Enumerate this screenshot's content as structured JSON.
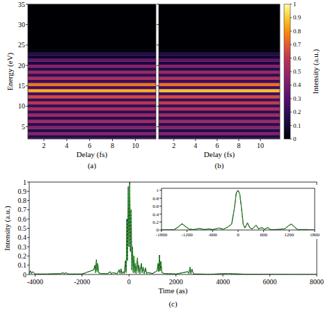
{
  "chart_data": [
    {
      "type": "heatmap",
      "panel": "(a)",
      "xlabel": "Delay (fs)",
      "ylabel": "Energy (eV)",
      "xlim": [
        0.6,
        11.8
      ],
      "ylim": [
        2,
        35
      ],
      "xticks": [
        2,
        4,
        6,
        8,
        10
      ],
      "yticks": [
        5,
        10,
        15,
        20,
        25,
        30,
        35
      ],
      "x_edges": [
        0.6,
        11.8
      ],
      "y_edges": [
        1.5,
        2.25,
        3,
        3.75,
        4.5,
        5.25,
        6,
        6.75,
        7.5,
        8.25,
        9,
        9.75,
        10.5,
        11.25,
        12,
        12.75,
        13.5,
        14.25,
        15,
        15.75,
        16.5,
        17.25,
        18,
        18.75,
        19.5,
        20.25,
        21,
        21.75,
        22.5,
        23.25,
        24,
        35
      ],
      "cells": [
        [
          0.35
        ],
        [
          0.15
        ],
        [
          0.45
        ],
        [
          0.15
        ],
        [
          0.45
        ],
        [
          0.18
        ],
        [
          0.5
        ],
        [
          0.18
        ],
        [
          0.5
        ],
        [
          0.2
        ],
        [
          0.55
        ],
        [
          0.2
        ],
        [
          0.6
        ],
        [
          0.22
        ],
        [
          0.65
        ],
        [
          0.25
        ],
        [
          0.85
        ],
        [
          0.25
        ],
        [
          0.75
        ],
        [
          0.22
        ],
        [
          0.55
        ],
        [
          0.2
        ],
        [
          0.5
        ],
        [
          0.15
        ],
        [
          0.45
        ],
        [
          0.12
        ],
        [
          0.35
        ],
        [
          0.08
        ],
        [
          0.15
        ],
        [
          0.02
        ],
        [
          0
        ]
      ]
    },
    {
      "type": "heatmap",
      "panel": "(b)",
      "xlabel": "Delay (fs)",
      "tick_labels": "x",
      "xlim": [
        0.6,
        11.8
      ],
      "ylim": [
        2,
        35
      ],
      "xticks": [
        2,
        4,
        6,
        8,
        10
      ],
      "yticks": [
        5,
        10,
        15,
        20,
        25,
        30,
        35
      ],
      "x_edges": [
        0.6,
        11.8
      ],
      "y_edges": [
        1.5,
        2.25,
        3,
        3.75,
        4.5,
        5.25,
        6,
        6.75,
        7.5,
        8.25,
        9,
        9.75,
        10.5,
        11.25,
        12,
        12.75,
        13.5,
        14.25,
        15,
        15.75,
        16.5,
        17.25,
        18,
        18.75,
        19.5,
        20.25,
        21,
        21.75,
        22.5,
        23.25,
        24,
        35
      ],
      "cells": [
        [
          0.33
        ],
        [
          0.14
        ],
        [
          0.44
        ],
        [
          0.15
        ],
        [
          0.46
        ],
        [
          0.18
        ],
        [
          0.5
        ],
        [
          0.19
        ],
        [
          0.52
        ],
        [
          0.2
        ],
        [
          0.56
        ],
        [
          0.21
        ],
        [
          0.62
        ],
        [
          0.22
        ],
        [
          0.66
        ],
        [
          0.24
        ],
        [
          0.88
        ],
        [
          0.25
        ],
        [
          0.74
        ],
        [
          0.22
        ],
        [
          0.56
        ],
        [
          0.2
        ],
        [
          0.5
        ],
        [
          0.15
        ],
        [
          0.44
        ],
        [
          0.12
        ],
        [
          0.34
        ],
        [
          0.08
        ],
        [
          0.14
        ],
        [
          0.02
        ],
        [
          0
        ]
      ],
      "colorbar": {
        "label": "Intensity (a.u.)",
        "range": [
          0,
          1
        ],
        "ticks": [
          0,
          0.1,
          0.2,
          0.3,
          0.4,
          0.5,
          0.6,
          0.7,
          0.8,
          0.9,
          1
        ]
      }
    },
    {
      "type": "line",
      "panel": "(c)",
      "xlabel": "Time (as)",
      "ylabel": "Intensity (a.u.)",
      "xlim": [
        -4250,
        8000
      ],
      "ylim": [
        0,
        1
      ],
      "xticks": [
        -4000,
        -2000,
        0,
        2000,
        4000,
        6000,
        8000
      ],
      "yticks": [
        0,
        0.1,
        0.2,
        0.3,
        0.4,
        0.5,
        0.6,
        0.7,
        0.8,
        0.9,
        1
      ],
      "x": [
        -4250,
        -4200,
        -4150,
        -4100,
        -4000,
        -3500,
        -2900,
        -2800,
        -2750,
        -2700,
        -2600,
        -2000,
        -1500,
        -1450,
        -1420,
        -1390,
        -1360,
        -1330,
        -1300,
        -1200,
        -900,
        -800,
        -750,
        -700,
        -500,
        -420,
        -380,
        -340,
        -300,
        -250,
        -200,
        -150,
        -120,
        -90,
        -60,
        -30,
        0,
        30,
        60,
        90,
        120,
        150,
        180,
        210,
        240,
        270,
        300,
        360,
        390,
        420,
        460,
        530,
        560,
        600,
        650,
        700,
        750,
        800,
        1000,
        1200,
        1240,
        1270,
        1300,
        1330,
        1360,
        1400,
        1500,
        2000,
        2500,
        2550,
        2600,
        2640,
        2680,
        2750,
        3500,
        4200,
        5000,
        8000
      ],
      "series": [
        {
          "color": "#000000",
          "line_style": "solid",
          "values": [
            0.01,
            0.04,
            0.01,
            0.03,
            0.005,
            0.005,
            0.01,
            0.02,
            0.005,
            0.02,
            0.005,
            0.005,
            0.05,
            0.1,
            0.02,
            0.16,
            0.03,
            0.12,
            0.02,
            0.01,
            0.01,
            0.03,
            0.005,
            0.02,
            0.01,
            0.05,
            0.01,
            0.06,
            0.01,
            0.03,
            0.01,
            0.15,
            0.02,
            0.6,
            0.15,
            0.95,
            0.3,
            1.0,
            0.25,
            0.7,
            0.05,
            0.3,
            0.02,
            0.2,
            0.02,
            0.12,
            0.01,
            0.18,
            0.02,
            0.1,
            0.01,
            0.12,
            0.02,
            0.08,
            0.01,
            0.07,
            0.01,
            0.02,
            0.01,
            0.04,
            0.12,
            0.03,
            0.21,
            0.04,
            0.14,
            0.02,
            0.01,
            0.005,
            0.03,
            0.01,
            0.08,
            0.01,
            0.06,
            0.005,
            0.003,
            0.01,
            0.002,
            0
          ]
        },
        {
          "color": "#1a9e1a",
          "line_style": "dashed",
          "values": [
            0.01,
            0.04,
            0.01,
            0.03,
            0.005,
            0.005,
            0.01,
            0.02,
            0.005,
            0.02,
            0.005,
            0.005,
            0.05,
            0.1,
            0.02,
            0.15,
            0.03,
            0.12,
            0.02,
            0.01,
            0.01,
            0.03,
            0.005,
            0.02,
            0.01,
            0.05,
            0.01,
            0.06,
            0.01,
            0.03,
            0.01,
            0.15,
            0.02,
            0.58,
            0.15,
            0.95,
            0.3,
            0.98,
            0.25,
            0.7,
            0.05,
            0.3,
            0.02,
            0.2,
            0.02,
            0.12,
            0.01,
            0.17,
            0.02,
            0.1,
            0.01,
            0.12,
            0.02,
            0.08,
            0.01,
            0.07,
            0.01,
            0.02,
            0.01,
            0.04,
            0.12,
            0.03,
            0.2,
            0.04,
            0.14,
            0.02,
            0.01,
            0.005,
            0.03,
            0.01,
            0.08,
            0.01,
            0.06,
            0.005,
            0.003,
            0.01,
            0.002,
            0
          ]
        }
      ]
    },
    {
      "type": "line",
      "xlim": [
        -1800,
        1800
      ],
      "ylim": [
        0,
        1.05
      ],
      "xticks": [
        -1800,
        -1200,
        -600,
        0,
        600,
        1200,
        1800
      ],
      "yticks": [
        0,
        0.2,
        0.4,
        0.6,
        0.8,
        1
      ],
      "x": [
        -1800,
        -1500,
        -1400,
        -1320,
        -1250,
        -1150,
        -1050,
        -900,
        -800,
        -700,
        -600,
        -450,
        -350,
        -250,
        -150,
        -80,
        -40,
        0,
        40,
        80,
        120,
        160,
        220,
        280,
        340,
        420,
        480,
        560,
        620,
        700,
        760,
        900,
        1100,
        1200,
        1260,
        1320,
        1400,
        1600,
        1800
      ],
      "series": [
        {
          "color": "#000000",
          "line_style": "solid",
          "values": [
            0,
            0.01,
            0.08,
            0.16,
            0.1,
            0.02,
            0.01,
            0.04,
            0.01,
            0.03,
            0.01,
            0.05,
            0.02,
            0.07,
            0.15,
            0.6,
            0.95,
            1.0,
            0.9,
            0.55,
            0.15,
            0.05,
            0.18,
            0.05,
            0.03,
            0.12,
            0.03,
            0.06,
            0.02,
            0.06,
            0.01,
            0.01,
            0.03,
            0.12,
            0.15,
            0.08,
            0.01,
            0.01,
            0
          ]
        },
        {
          "color": "#1a9e1a",
          "line_style": "dashed",
          "values": [
            0,
            0.01,
            0.08,
            0.15,
            0.1,
            0.02,
            0.01,
            0.04,
            0.01,
            0.03,
            0.01,
            0.05,
            0.02,
            0.07,
            0.15,
            0.6,
            0.95,
            0.99,
            0.9,
            0.55,
            0.15,
            0.05,
            0.17,
            0.05,
            0.03,
            0.12,
            0.03,
            0.06,
            0.02,
            0.06,
            0.01,
            0.01,
            0.03,
            0.12,
            0.14,
            0.08,
            0.01,
            0.01,
            0
          ]
        }
      ]
    }
  ]
}
